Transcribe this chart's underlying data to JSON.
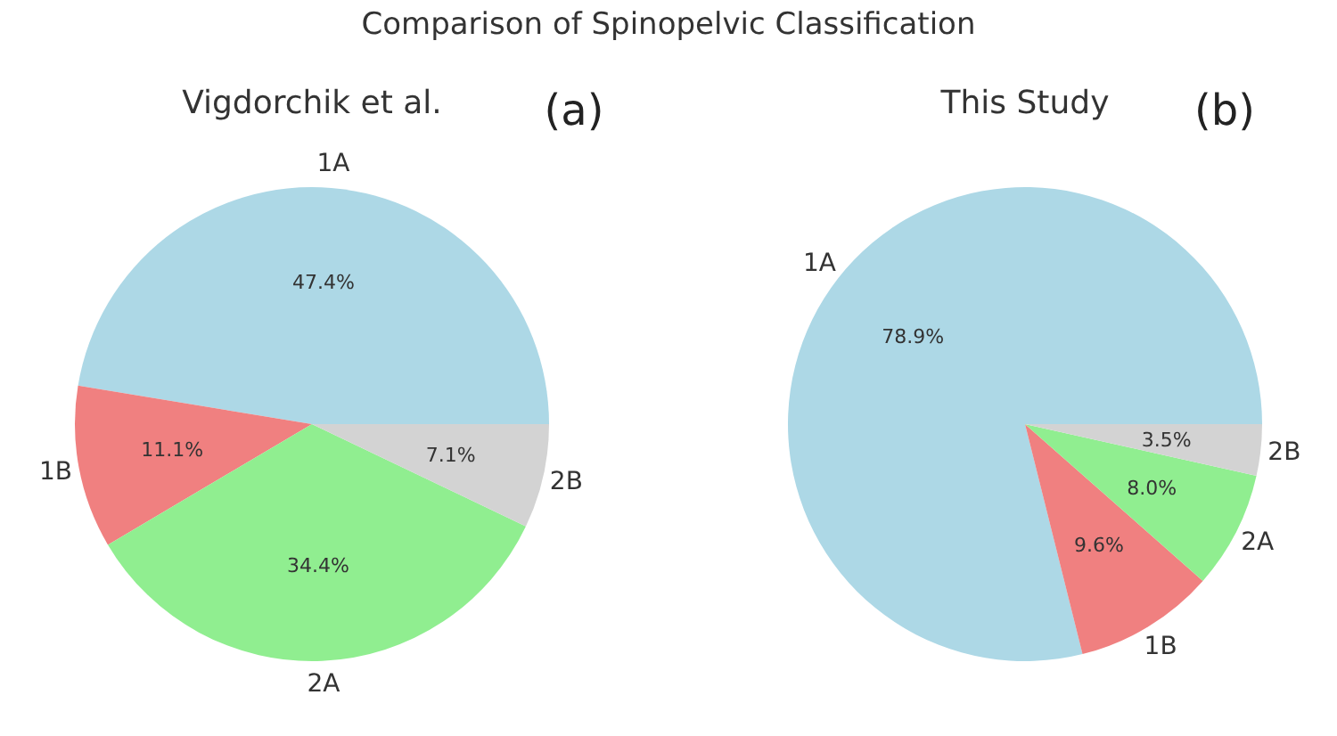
{
  "chart_data": [
    {
      "type": "pie",
      "title": "Vigdorchik et al.",
      "annotations": [
        "Comparison of Spinopelvic Classification",
        "(a)"
      ],
      "categories": [
        "1A",
        "1B",
        "2A",
        "2B"
      ],
      "values": [
        47.4,
        11.1,
        34.4,
        7.1
      ],
      "value_labels": [
        "47.4%",
        "11.1%",
        "34.4%",
        "7.1%"
      ],
      "colors": [
        "#add8e6",
        "#f08080",
        "#90ee90",
        "#d3d3d3"
      ]
    },
    {
      "type": "pie",
      "title": "This Study",
      "annotations": [
        "(b)"
      ],
      "categories": [
        "1A",
        "1B",
        "2A",
        "2B"
      ],
      "values": [
        78.9,
        9.6,
        8.0,
        3.5
      ],
      "value_labels": [
        "78.9%",
        "9.6%",
        "8.0%",
        "3.5%"
      ],
      "colors": [
        "#add8e6",
        "#f08080",
        "#90ee90",
        "#d3d3d3"
      ]
    }
  ]
}
